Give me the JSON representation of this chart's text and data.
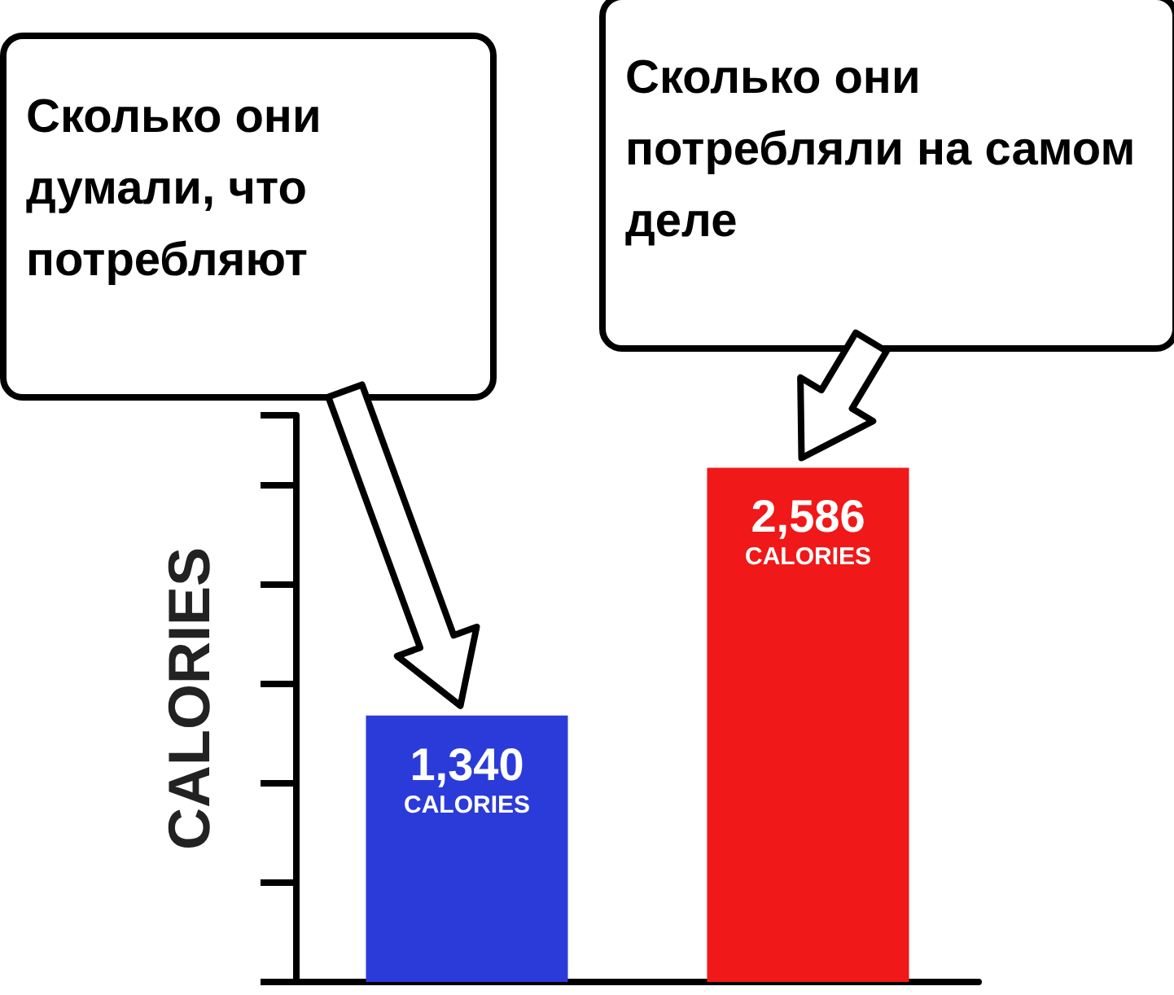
{
  "chart_data": {
    "type": "bar",
    "ylabel": "CALORIES",
    "categories": [
      null,
      null
    ],
    "values": [
      1340,
      2586
    ],
    "colors": [
      "#2b3bd9",
      "#f01818"
    ],
    "value_labels": [
      "1,340 CALORIES",
      "2,586 CALORIES"
    ],
    "ylim": [
      0,
      2850
    ],
    "annotations": [
      "Сколько они думали, что потребляют",
      "Сколько они потребляли на самом деле"
    ],
    "grid": false
  }
}
